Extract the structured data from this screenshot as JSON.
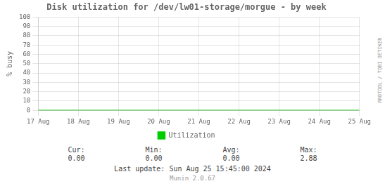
{
  "chart_data": {
    "type": "line",
    "title": "Disk utilization for /dev/lw01-storage/morgue - by week",
    "ylabel": "% busy",
    "x": [
      0,
      8
    ],
    "series": [
      {
        "name": "Utilization",
        "color": "#00cc00",
        "values": [
          0,
          0
        ]
      }
    ],
    "xlim": [
      0,
      8
    ],
    "xticks": [
      {
        "value": 0,
        "label": "17 Aug"
      },
      {
        "value": 1,
        "label": "18 Aug"
      },
      {
        "value": 2,
        "label": "19 Aug"
      },
      {
        "value": 3,
        "label": "20 Aug"
      },
      {
        "value": 4,
        "label": "21 Aug"
      },
      {
        "value": 5,
        "label": "22 Aug"
      },
      {
        "value": 6,
        "label": "23 Aug"
      },
      {
        "value": 7,
        "label": "24 Aug"
      },
      {
        "value": 8,
        "label": "25 Aug"
      }
    ],
    "ylim": [
      0,
      100
    ],
    "yticks": [
      0,
      10,
      20,
      30,
      40,
      50,
      60,
      70,
      80,
      90,
      100
    ],
    "grid": true,
    "legend": "bottom",
    "annotations": [
      "Cur:",
      "0.00",
      "Min:",
      "0.00",
      "Avg:",
      "0.00",
      "Max:",
      "2.88",
      "Last update: Sun Aug 25 15:45:00 2024",
      "Munin 2.0.67",
      "RRDTOOL / TOBI OETIKER"
    ]
  }
}
